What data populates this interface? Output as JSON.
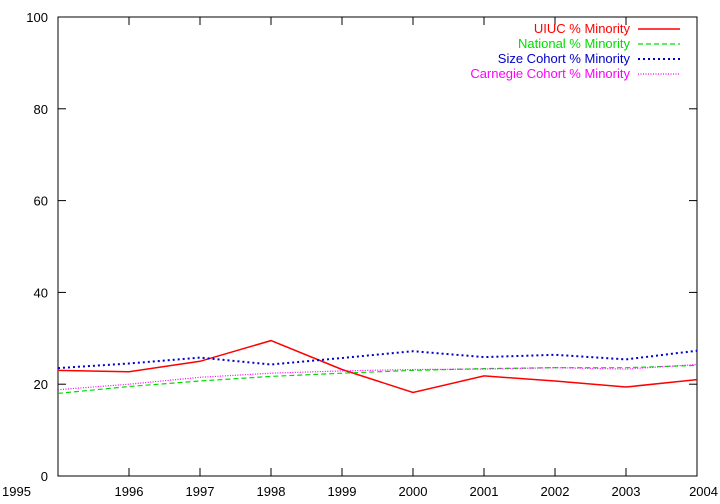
{
  "chart_data": {
    "type": "line",
    "title": "",
    "xlabel": "",
    "ylabel": "",
    "x": [
      1995,
      1996,
      1997,
      1998,
      1999,
      2000,
      2001,
      2002,
      2003,
      2004
    ],
    "xlim": [
      1995,
      2004
    ],
    "ylim": [
      0,
      100
    ],
    "xticks": [
      "1995",
      "1996",
      "1997",
      "1998",
      "1999",
      "2000",
      "2001",
      "2002",
      "2003",
      "2004"
    ],
    "yticks": [
      "0",
      "20",
      "40",
      "60",
      "80",
      "100"
    ],
    "grid": false,
    "legend_position": "top-right",
    "series": [
      {
        "name": "UIUC % Minority",
        "color": "#ff0000",
        "dash": "solid",
        "values": [
          23.0,
          22.7,
          25.0,
          29.5,
          23.2,
          18.2,
          21.8,
          20.7,
          19.4,
          21.0
        ]
      },
      {
        "name": "National % Minority",
        "color": "#00dd00",
        "dash": "dashed",
        "values": [
          18.0,
          19.5,
          20.7,
          21.7,
          22.4,
          23.0,
          23.4,
          23.6,
          23.6,
          24.1
        ]
      },
      {
        "name": "Size Cohort % Minority",
        "color": "#0000cc",
        "dash": "dotted",
        "values": [
          23.5,
          24.5,
          25.8,
          24.3,
          25.7,
          27.2,
          25.9,
          26.4,
          25.4,
          27.3
        ]
      },
      {
        "name": "Carnegie Cohort % Minority",
        "color": "#ff00ff",
        "dash": "fine-dotted",
        "values": [
          18.8,
          20.0,
          21.5,
          22.4,
          22.9,
          23.2,
          23.3,
          23.6,
          23.3,
          24.3
        ]
      }
    ]
  }
}
